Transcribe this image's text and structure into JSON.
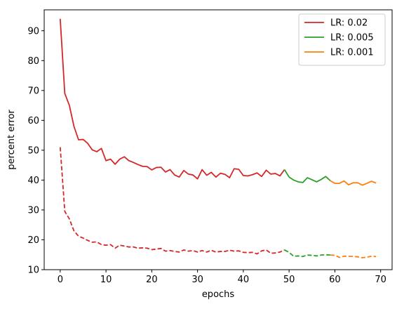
{
  "chart_data": {
    "type": "line",
    "title": "",
    "xlabel": "epochs",
    "ylabel": "percent error",
    "xlim": [
      -3.5,
      72.5
    ],
    "ylim": [
      10,
      97
    ],
    "xticks": [
      0,
      10,
      20,
      30,
      40,
      50,
      60,
      70
    ],
    "yticks": [
      10,
      20,
      30,
      40,
      50,
      60,
      70,
      80,
      90
    ],
    "grid": false,
    "legend_position": "top-right",
    "series": [
      {
        "name": "LR: 0.02",
        "color": "#d62728",
        "style": "solid",
        "x": [
          0,
          1,
          2,
          3,
          4,
          5,
          6,
          7,
          8,
          9,
          10,
          11,
          12,
          13,
          14,
          15,
          16,
          17,
          18,
          19,
          20,
          21,
          22,
          23,
          24,
          25,
          26,
          27,
          28,
          29,
          30,
          31,
          32,
          33,
          34,
          35,
          36,
          37,
          38,
          39,
          40,
          41,
          42,
          43,
          44,
          45,
          46,
          47,
          48,
          49
        ],
        "values": [
          94,
          69,
          65,
          58,
          53.5,
          53.6,
          52.3,
          50.1,
          49.5,
          50.6,
          46.5,
          47,
          45.3,
          47,
          47.8,
          46.5,
          45.9,
          45.2,
          44.6,
          44.5,
          43.4,
          44.2,
          44.3,
          42.7,
          43.5,
          41.7,
          41,
          43.2,
          42,
          41.7,
          40.4,
          43.5,
          41.6,
          42.6,
          41,
          42.3,
          41.9,
          40.8,
          43.8,
          43.6,
          41.5,
          41.4,
          41.8,
          42.4,
          41.2,
          43.3,
          42,
          42.2,
          41.4,
          43.5
        ]
      },
      {
        "name": "",
        "color": "#d62728",
        "style": "dashed",
        "x": [
          0,
          1,
          2,
          3,
          4,
          5,
          6,
          7,
          8,
          9,
          10,
          11,
          12,
          13,
          14,
          15,
          16,
          17,
          18,
          19,
          20,
          21,
          22,
          23,
          24,
          25,
          26,
          27,
          28,
          29,
          30,
          31,
          32,
          33,
          34,
          35,
          36,
          37,
          38,
          39,
          40,
          41,
          42,
          43,
          44,
          45,
          46,
          47,
          48,
          49
        ],
        "values": [
          51,
          29.5,
          27,
          23,
          21.2,
          20.6,
          19.8,
          19.2,
          19.3,
          18.4,
          18.2,
          18.4,
          17.2,
          18.2,
          17.9,
          17.6,
          17.6,
          17.2,
          17.3,
          17.2,
          16.7,
          16.9,
          17.1,
          16.2,
          16.4,
          16.1,
          15.9,
          16.6,
          16.2,
          16.4,
          15.9,
          16.4,
          15.9,
          16.5,
          15.9,
          16.1,
          16.1,
          16.5,
          16.2,
          16.3,
          15.8,
          15.7,
          15.8,
          15.3,
          16.3,
          16.6,
          15.5,
          15.6,
          15.9,
          16.6
        ]
      },
      {
        "name": "LR: 0.005",
        "color": "#2ca02c",
        "style": "solid",
        "x": [
          49,
          50,
          51,
          52,
          53,
          54,
          55,
          56,
          57,
          58,
          59
        ],
        "values": [
          43.5,
          41,
          40,
          39.4,
          39.2,
          40.8,
          40.1,
          39.4,
          40.2,
          41.2,
          39.8
        ]
      },
      {
        "name": "",
        "color": "#2ca02c",
        "style": "dashed",
        "x": [
          49,
          50,
          51,
          52,
          53,
          54,
          55,
          56,
          57,
          58,
          59
        ],
        "values": [
          16.6,
          15.8,
          14.5,
          14.6,
          14.4,
          14.9,
          14.8,
          14.6,
          14.9,
          15,
          14.9
        ]
      },
      {
        "name": "LR: 0.001",
        "color": "#ff7f0e",
        "style": "solid",
        "x": [
          59,
          60,
          61,
          62,
          63,
          64,
          65,
          66,
          67,
          68,
          69
        ],
        "values": [
          39.8,
          38.9,
          38.9,
          39.7,
          38.4,
          39.1,
          39.1,
          38.3,
          38.9,
          39.6,
          39
        ]
      },
      {
        "name": "",
        "color": "#ff7f0e",
        "style": "dashed",
        "x": [
          59,
          60,
          61,
          62,
          63,
          64,
          65,
          66,
          67,
          68,
          69
        ],
        "values": [
          14.9,
          14.8,
          14.1,
          14.5,
          14.5,
          14.4,
          14.3,
          14,
          14.2,
          14.5,
          14.4
        ]
      }
    ]
  }
}
